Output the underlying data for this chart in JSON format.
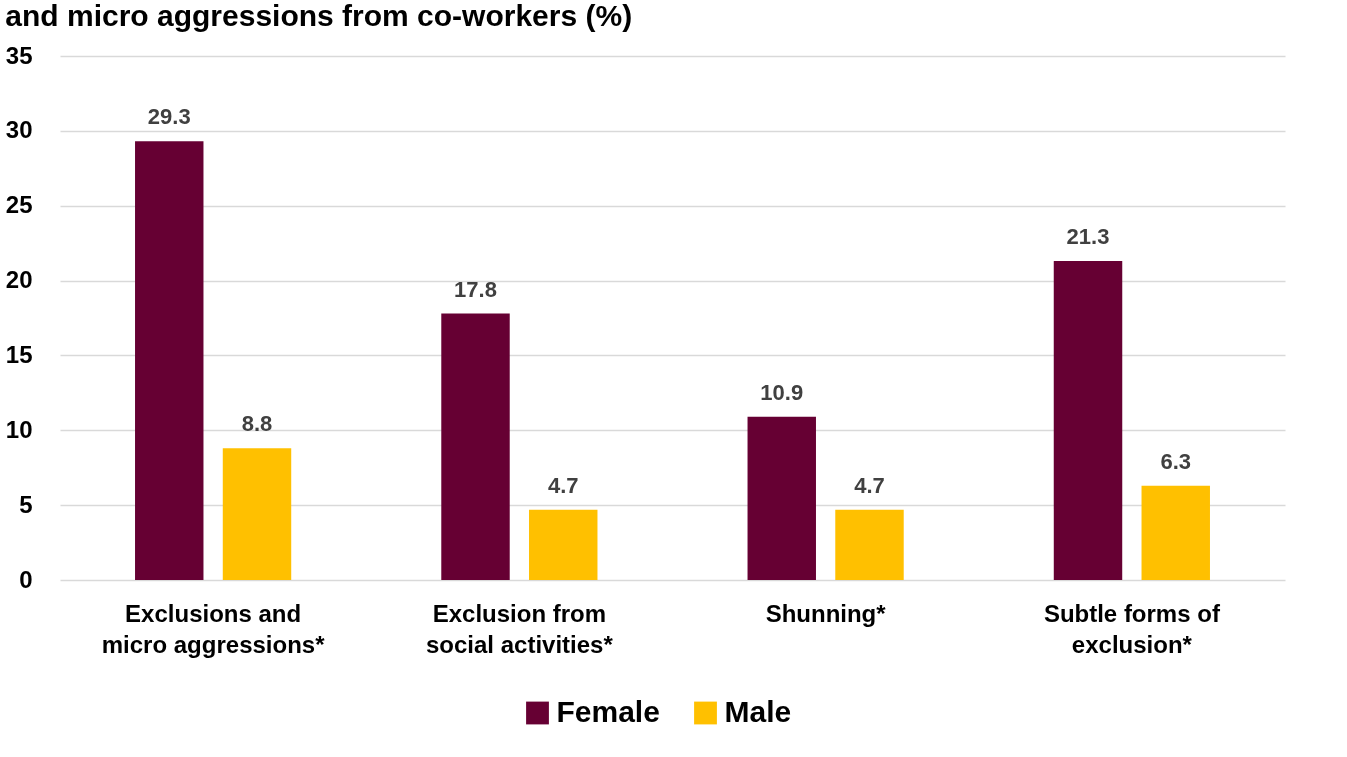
{
  "chart_data": {
    "type": "bar",
    "title": "and micro aggressions from co-workers (%)",
    "categories": [
      "Exclusions and micro aggressions*",
      "Exclusion from social activities*",
      "Shunning*",
      "Subtle forms of exclusion*"
    ],
    "series": [
      {
        "name": "Female",
        "color": "#660033",
        "values": [
          29.3,
          17.8,
          10.9,
          21.3
        ]
      },
      {
        "name": "Male",
        "color": "#ffc000",
        "values": [
          8.8,
          4.7,
          4.7,
          6.3
        ]
      }
    ],
    "ylim": [
      0,
      35
    ],
    "yticks": [
      0,
      5,
      10,
      15,
      20,
      25,
      30,
      35
    ],
    "grid": "y",
    "legend": "bottom",
    "data_labels": true
  }
}
